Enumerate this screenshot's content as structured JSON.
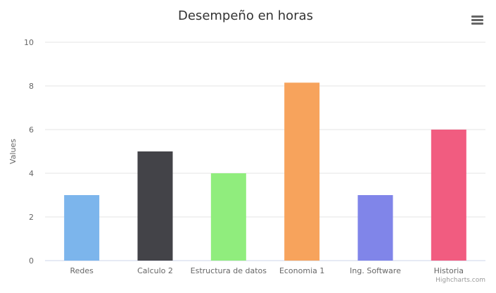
{
  "chart_data": {
    "type": "bar",
    "title": "Desempeño en horas",
    "xlabel": "",
    "ylabel": "Values",
    "categories": [
      "Redes",
      "Calculo 2",
      "Estructura de datos",
      "Economia 1",
      "Ing. Software",
      "Historia"
    ],
    "values": [
      3,
      5,
      4,
      8.15,
      3,
      6
    ],
    "colors": [
      "#7cb5ec",
      "#434348",
      "#90ed7d",
      "#f7a35c",
      "#8085e9",
      "#f15c80"
    ],
    "ylim": [
      0,
      10
    ],
    "yticks": [
      0,
      2,
      4,
      6,
      8,
      10
    ],
    "grid": true,
    "legend": "none"
  },
  "menu": {
    "icon": "hamburger-menu-icon"
  },
  "credits": "Highcharts.com"
}
